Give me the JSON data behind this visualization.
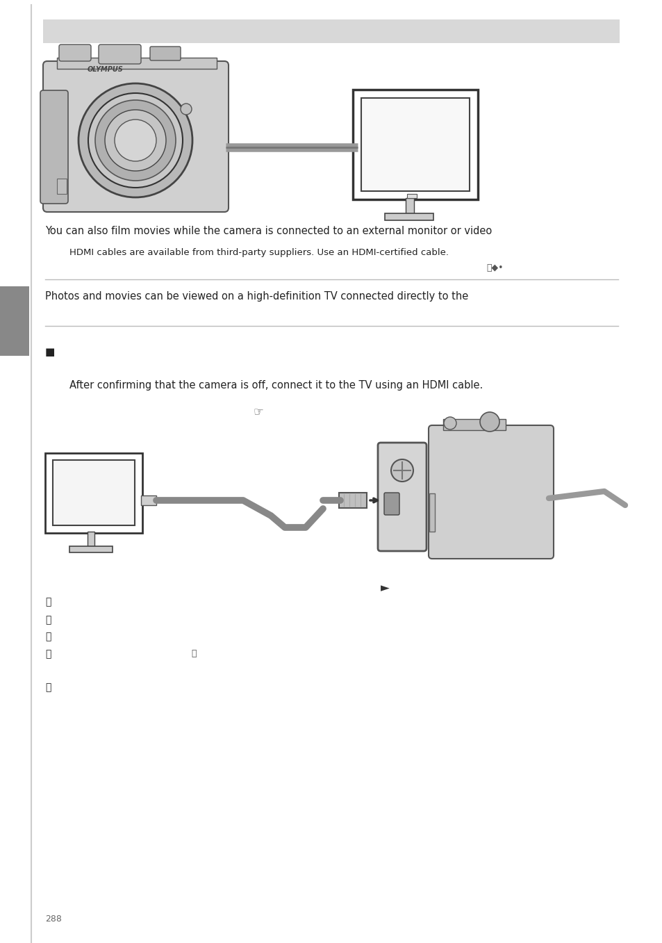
{
  "page_background": "#ffffff",
  "header_bar_color": "#d8d8d8",
  "body_text_color": "#222222",
  "line1": "You can also film movies while the camera is connected to an external monitor or video",
  "line2": "HDMI cables are available from third-party suppliers. Use an HDMI-certified cable.",
  "line3": "Photos and movies can be viewed on a high-definition TV connected directly to the",
  "line4": "After confirming that the camera is off, connect it to the TV using an HDMI cable.",
  "page_number": "288"
}
